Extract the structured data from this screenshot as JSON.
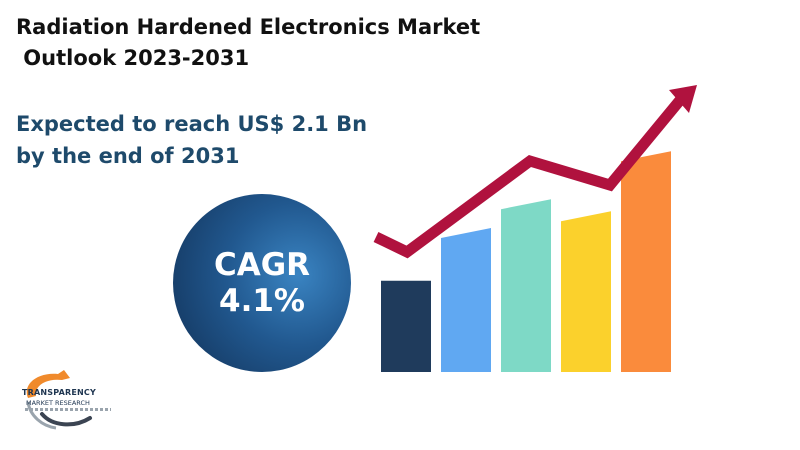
{
  "title_lines": [
    "Radiation Hardened Electronics Market",
    " Outlook 2023-2031"
  ],
  "subtitle_lines": [
    "Expected to reach US$ 2.1 Bn",
    "by the end of 2031"
  ],
  "cagr": {
    "label": "CAGR",
    "value": "4.1%"
  },
  "graphic": {
    "bar_levels": [
      0.38,
      0.6,
      0.72,
      0.67,
      0.92
    ],
    "bar_colors": [
      "#1f3b5c",
      "#60a8f2",
      "#7ed9c6",
      "#fbd12c",
      "#fa8b3c"
    ],
    "arrow_color": "#b0123e"
  },
  "logo": {
    "name": "TRANSPARENCY",
    "sub": "MARKET RESEARCH"
  }
}
